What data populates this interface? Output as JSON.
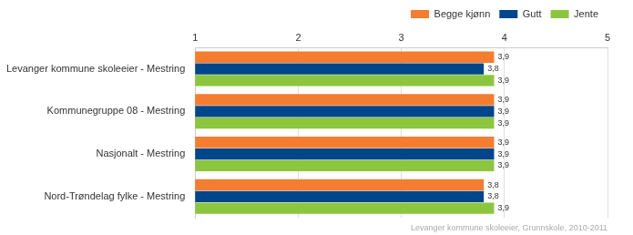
{
  "chart_data": {
    "type": "bar",
    "orientation": "horizontal",
    "categories": [
      "Levanger kommune skoleeier - Mestring",
      "Kommunegruppe 08 - Mestring",
      "Nasjonalt - Mestring",
      "Nord-Trøndelag fylke - Mestring"
    ],
    "series": [
      {
        "name": "Begge kjønn",
        "color": "#f47d30",
        "values": [
          3.9,
          3.9,
          3.9,
          3.8
        ],
        "value_labels": [
          "3,9",
          "3,9",
          "3,9",
          "3,8"
        ]
      },
      {
        "name": "Gutt",
        "color": "#00468b",
        "values": [
          3.8,
          3.9,
          3.9,
          3.8
        ],
        "value_labels": [
          "3,8",
          "3,9",
          "3,9",
          "3,8"
        ]
      },
      {
        "name": "Jente",
        "color": "#8cc63e",
        "values": [
          3.9,
          3.9,
          3.9,
          3.9
        ],
        "value_labels": [
          "3,9",
          "3,9",
          "3,9",
          "3,9"
        ]
      }
    ],
    "xlim": [
      1,
      5
    ],
    "xticks": [
      1,
      2,
      3,
      4,
      5
    ],
    "grid": true,
    "legend": "upper right",
    "data_labels": true,
    "annotations": [
      "Levanger kommune skoleeier, Grunnskole, 2010-2011"
    ]
  }
}
